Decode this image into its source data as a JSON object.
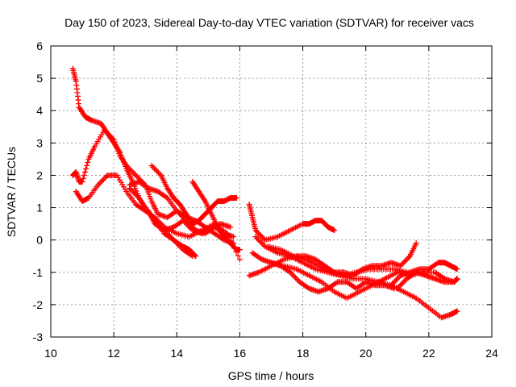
{
  "chart_data": {
    "type": "scatter",
    "title": "Day 150 of 2023, Sidereal Day-to-day VTEC variation (SDTVAR) for receiver vacs",
    "xlabel": "GPS time / hours",
    "ylabel": "SDTVAR / TECUs",
    "xlim": [
      10,
      24
    ],
    "ylim": [
      -3,
      6
    ],
    "xticks": [
      10,
      12,
      14,
      16,
      18,
      20,
      22,
      24
    ],
    "yticks": [
      -3,
      -2,
      -1,
      0,
      1,
      2,
      3,
      4,
      5,
      6
    ],
    "grid": true,
    "marker": "+",
    "color": "#ff0000",
    "series": [
      {
        "name": "trace-1",
        "x": [
          10.7,
          10.8,
          10.9,
          11.1,
          11.3,
          11.6,
          11.8,
          12.0,
          12.2,
          12.4,
          12.6,
          12.8,
          13.0,
          13.3,
          13.6,
          13.9,
          14.2,
          14.5
        ],
        "y": [
          5.3,
          4.9,
          4.1,
          3.8,
          3.7,
          3.6,
          3.3,
          3.0,
          2.7,
          2.2,
          1.8,
          1.3,
          1.0,
          0.6,
          0.3,
          0.0,
          -0.3,
          -0.5
        ]
      },
      {
        "name": "trace-2",
        "x": [
          10.8,
          11.0,
          11.2,
          11.5,
          11.8,
          12.1,
          12.4,
          12.7,
          13.0,
          13.3,
          13.6,
          14.0,
          14.4,
          14.8,
          15.2,
          15.6,
          16.0
        ],
        "y": [
          1.5,
          1.2,
          1.3,
          1.7,
          2.0,
          2.0,
          1.5,
          1.1,
          0.9,
          0.7,
          0.4,
          0.2,
          0.1,
          0.3,
          0.5,
          0.2,
          -0.6
        ]
      },
      {
        "name": "trace-3",
        "x": [
          10.7,
          10.8,
          10.9,
          11.0,
          11.2,
          11.4,
          11.7,
          12.0,
          12.2,
          12.4,
          12.7,
          13.0,
          13.2,
          13.4,
          13.7,
          14.0,
          14.3,
          14.6,
          14.9,
          15.2,
          15.5,
          15.8
        ],
        "y": [
          2.0,
          2.1,
          1.8,
          1.8,
          2.5,
          2.9,
          3.4,
          3.1,
          2.6,
          2.3,
          2.0,
          1.7,
          1.2,
          0.8,
          0.7,
          0.9,
          0.6,
          0.3,
          0.2,
          0.4,
          0.2,
          0.1
        ]
      },
      {
        "name": "trace-4",
        "x": [
          12.5,
          12.8,
          13.1,
          13.4,
          13.7,
          14.0,
          14.3,
          14.6,
          14.9,
          15.2,
          15.5,
          15.8
        ],
        "y": [
          1.7,
          1.8,
          1.6,
          1.5,
          1.3,
          0.9,
          0.7,
          0.6,
          0.4,
          0.2,
          0.0,
          -0.1
        ]
      },
      {
        "name": "trace-5",
        "x": [
          13.2,
          13.5,
          13.7,
          13.9,
          14.1,
          14.3,
          14.5,
          14.7,
          14.9,
          15.1,
          15.3,
          15.5,
          15.7,
          15.9
        ],
        "y": [
          2.3,
          2.0,
          1.6,
          1.3,
          1.1,
          0.8,
          0.5,
          0.6,
          0.8,
          1.0,
          1.2,
          1.2,
          1.3,
          1.3
        ]
      },
      {
        "name": "trace-6",
        "x": [
          13.1,
          13.3,
          13.6,
          13.9,
          14.2,
          14.5,
          14.8,
          15.1,
          15.4,
          15.7
        ],
        "y": [
          0.9,
          0.5,
          0.3,
          0.4,
          0.6,
          0.3,
          0.2,
          0.4,
          0.5,
          0.4
        ]
      },
      {
        "name": "trace-7",
        "x": [
          12.5,
          12.8,
          13.0,
          13.3,
          13.6,
          13.9,
          14.2,
          14.4,
          14.6
        ],
        "y": [
          1.6,
          1.3,
          1.0,
          0.6,
          0.2,
          0.0,
          -0.2,
          -0.3,
          -0.5
        ]
      },
      {
        "name": "trace-8",
        "x": [
          14.5,
          14.7,
          14.9,
          15.1,
          15.3,
          15.5,
          15.7,
          15.9,
          16.0
        ],
        "y": [
          1.8,
          1.5,
          1.2,
          0.8,
          0.4,
          0.1,
          -0.1,
          -0.3,
          -0.3
        ]
      },
      {
        "name": "trace-9",
        "x": [
          16.3,
          16.4,
          16.5,
          16.8,
          17.2,
          17.6,
          18.0,
          18.2,
          18.4,
          18.6,
          18.8,
          19.0
        ],
        "y": [
          1.1,
          0.7,
          0.3,
          0.0,
          0.1,
          0.3,
          0.5,
          0.5,
          0.6,
          0.6,
          0.4,
          0.3
        ]
      },
      {
        "name": "trace-10",
        "x": [
          16.3,
          16.6,
          17.0,
          17.4,
          17.8,
          18.1,
          18.4,
          18.7,
          19.0,
          19.3,
          19.6,
          19.9,
          20.2,
          20.5,
          20.8,
          21.1,
          21.4,
          21.6
        ],
        "y": [
          -1.1,
          -1.0,
          -0.8,
          -0.6,
          -0.5,
          -0.5,
          -0.6,
          -0.8,
          -1.0,
          -1.0,
          -1.1,
          -0.9,
          -0.8,
          -0.8,
          -0.7,
          -0.8,
          -0.5,
          -0.1
        ]
      },
      {
        "name": "trace-11",
        "x": [
          16.4,
          16.7,
          17.0,
          17.3,
          17.6,
          17.9,
          18.2,
          18.5,
          18.8,
          19.1,
          19.4,
          19.7,
          20.0,
          20.3,
          20.6,
          20.9
        ],
        "y": [
          -0.4,
          -0.6,
          -0.7,
          -0.8,
          -1.0,
          -1.3,
          -1.5,
          -1.6,
          -1.5,
          -1.3,
          -1.3,
          -1.5,
          -1.3,
          -1.4,
          -1.4,
          -1.5
        ]
      },
      {
        "name": "trace-12",
        "x": [
          16.5,
          16.8,
          17.2,
          17.6,
          18.0,
          18.4,
          18.8,
          19.2,
          19.6,
          20.0,
          20.4,
          20.8,
          21.2,
          21.6,
          22.0,
          22.4,
          22.7,
          22.9
        ],
        "y": [
          0.1,
          -0.2,
          -0.4,
          -0.5,
          -0.7,
          -0.9,
          -1.0,
          -1.1,
          -1.2,
          -1.2,
          -1.3,
          -1.4,
          -1.6,
          -1.8,
          -2.1,
          -2.4,
          -2.3,
          -2.2
        ]
      },
      {
        "name": "trace-13",
        "x": [
          17.0,
          17.4,
          17.8,
          18.2,
          18.6,
          19.0,
          19.4,
          19.8,
          20.2,
          20.6,
          21.0,
          21.4,
          21.8,
          22.2,
          22.5,
          22.8,
          22.9
        ],
        "y": [
          -0.7,
          -0.8,
          -0.9,
          -1.1,
          -1.3,
          -1.6,
          -1.8,
          -1.6,
          -1.4,
          -1.2,
          -1.0,
          -1.1,
          -1.0,
          -1.0,
          -1.2,
          -1.3,
          -1.2
        ]
      },
      {
        "name": "trace-14",
        "x": [
          20.8,
          21.1,
          21.4,
          21.7,
          22.0,
          22.3,
          22.5,
          22.7,
          22.9
        ],
        "y": [
          -1.4,
          -1.1,
          -1.0,
          -0.9,
          -0.9,
          -0.7,
          -0.7,
          -0.8,
          -0.9
        ]
      },
      {
        "name": "trace-15",
        "x": [
          16.9,
          17.3,
          17.7,
          18.1,
          18.5,
          18.9,
          19.3,
          19.7,
          20.1,
          20.5,
          20.9,
          21.3
        ],
        "y": [
          -0.2,
          -0.3,
          -0.5,
          -0.6,
          -0.8,
          -1.0,
          -1.1,
          -1.0,
          -0.9,
          -0.9,
          -0.9,
          -1.0
        ]
      },
      {
        "name": "trace-16",
        "x": [
          21.0,
          21.3,
          21.6,
          21.9,
          22.2,
          22.5,
          22.8,
          22.9
        ],
        "y": [
          -1.5,
          -1.2,
          -1.0,
          -1.1,
          -1.2,
          -1.3,
          -1.3,
          -1.2
        ]
      }
    ]
  }
}
